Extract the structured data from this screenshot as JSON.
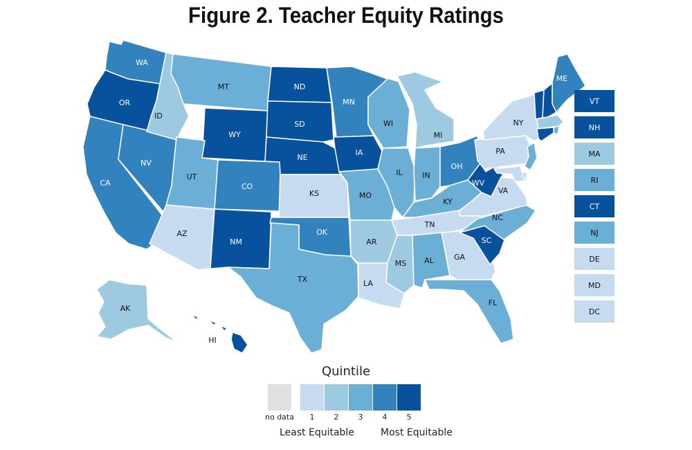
{
  "title": "Figure 2. Teacher Equity Ratings",
  "legend": {
    "title": "Quintile",
    "no_data_label": "no data",
    "no_data_color": "#e0e0e0",
    "levels": [
      {
        "label": "1",
        "color": "#c6dbef"
      },
      {
        "label": "2",
        "color": "#9ecae1"
      },
      {
        "label": "3",
        "color": "#6baed6"
      },
      {
        "label": "4",
        "color": "#3182bd"
      },
      {
        "label": "5",
        "color": "#08519c"
      }
    ],
    "low_label": "Least Equitable",
    "high_label": "Most Equitable"
  },
  "chart_data": {
    "type": "choropleth",
    "title": "Figure 2. Teacher Equity Ratings",
    "legend_title": "Quintile",
    "values": {
      "WA": 4,
      "OR": 5,
      "CA": 4,
      "NV": 4,
      "ID": 2,
      "MT": 3,
      "WY": 5,
      "UT": 3,
      "AZ": 1,
      "CO": 4,
      "NM": 5,
      "ND": 5,
      "SD": 5,
      "NE": 5,
      "KS": 1,
      "OK": 4,
      "TX": 3,
      "MN": 4,
      "IA": 5,
      "MO": 3,
      "AR": 2,
      "LA": 1,
      "WI": 3,
      "IL": 3,
      "MI": 2,
      "IN": 3,
      "OH": 4,
      "KY": 3,
      "TN": 1,
      "MS": 2,
      "AL": 3,
      "GA": 1,
      "FL": 3,
      "SC": 5,
      "NC": 3,
      "VA": 1,
      "WV": 5,
      "PA": 1,
      "NY": 1,
      "ME": 4,
      "VT": 5,
      "NH": 5,
      "MA": 2,
      "RI": 3,
      "CT": 5,
      "NJ": 3,
      "DE": 1,
      "MD": 1,
      "DC": 1,
      "AK": 2,
      "HI": 5
    },
    "side_boxes": [
      "VT",
      "NH",
      "MA",
      "RI",
      "CT",
      "NJ",
      "DE",
      "MD",
      "DC"
    ]
  }
}
